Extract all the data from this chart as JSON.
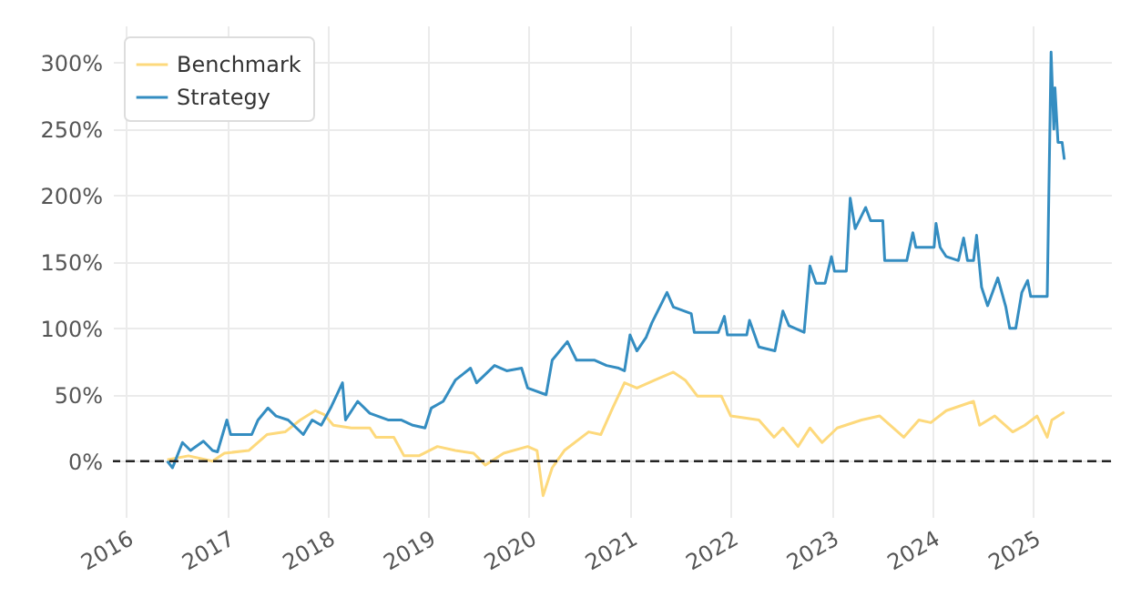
{
  "chart_data": {
    "type": "line",
    "xlim": [
      "2015-11-15",
      "2025-10-10"
    ],
    "xticks": [
      "2016",
      "2017",
      "2018",
      "2019",
      "2020",
      "2021",
      "2022",
      "2023",
      "2024",
      "2025"
    ],
    "ylim": [
      -42,
      328
    ],
    "yticks": [
      {
        "value": 0,
        "label": "0%"
      },
      {
        "value": 50,
        "label": "50%"
      },
      {
        "value": 100,
        "label": "100%"
      },
      {
        "value": 150,
        "label": "150%"
      },
      {
        "value": 200,
        "label": "200%"
      },
      {
        "value": 250,
        "label": "250%"
      },
      {
        "value": 300,
        "label": "300%"
      }
    ],
    "grid": true,
    "legend": "top left",
    "ref_lines": [
      {
        "axis": "y",
        "value": 0,
        "color": "#222222",
        "line_style": "dashed"
      }
    ],
    "series": [
      {
        "name": "Benchmark",
        "color": "#fdd97c",
        "x": [
          "2016-05-30",
          "2016-08-15",
          "2016-11-10",
          "2016-12-23",
          "2017-03-21",
          "2017-05-26",
          "2017-07-31",
          "2017-09-24",
          "2017-11-17",
          "2017-12-20",
          "2018-01-22",
          "2018-03-28",
          "2018-06-03",
          "2018-06-25",
          "2018-08-29",
          "2018-10-05",
          "2018-11-28",
          "2019-02-03",
          "2019-04-09",
          "2019-06-14",
          "2019-07-27",
          "2019-10-01",
          "2019-12-27",
          "2020-01-30",
          "2020-02-21",
          "2020-03-25",
          "2020-05-08",
          "2020-08-04",
          "2020-09-17",
          "2020-10-30",
          "2020-12-12",
          "2021-01-26",
          "2021-04-01",
          "2021-06-07",
          "2021-07-20",
          "2021-09-02",
          "2021-11-28",
          "2022-01-01",
          "2022-04-13",
          "2022-06-07",
          "2022-07-09",
          "2022-09-02",
          "2022-10-15",
          "2022-11-28",
          "2023-01-22",
          "2023-04-20",
          "2023-06-25",
          "2023-09-20",
          "2023-11-14",
          "2023-12-27",
          "2024-02-21",
          "2024-05-30",
          "2024-06-21",
          "2024-08-15",
          "2024-10-19",
          "2024-12-02",
          "2025-01-15",
          "2025-02-21",
          "2025-03-10",
          "2025-04-24"
        ],
        "values": [
          1,
          4,
          0,
          6,
          8,
          20,
          22,
          31,
          38,
          35,
          27,
          25,
          25,
          18,
          18,
          4,
          4,
          11,
          8,
          6,
          -3,
          6,
          11,
          8,
          -26,
          -5,
          8,
          22,
          20,
          40,
          59,
          55,
          61,
          67,
          61,
          49,
          49,
          34,
          31,
          18,
          25,
          11,
          25,
          14,
          25,
          31,
          34,
          18,
          31,
          29,
          38,
          45,
          27,
          34,
          22,
          27,
          34,
          18,
          31,
          37
        ]
      },
      {
        "name": "Strategy",
        "color": "#348dc1",
        "x": [
          "2016-05-30",
          "2016-06-18",
          "2016-07-24",
          "2016-08-22",
          "2016-10-08",
          "2016-11-10",
          "2016-11-28",
          "2017-01-01",
          "2017-01-15",
          "2017-04-01",
          "2017-04-24",
          "2017-05-30",
          "2017-06-28",
          "2017-08-11",
          "2017-10-05",
          "2017-11-06",
          "2017-12-09",
          "2018-01-12",
          "2018-02-24",
          "2018-03-07",
          "2018-04-20",
          "2018-06-03",
          "2018-08-08",
          "2018-09-24",
          "2018-11-06",
          "2018-12-20",
          "2019-01-12",
          "2019-02-24",
          "2019-04-09",
          "2019-06-03",
          "2019-06-25",
          "2019-08-29",
          "2019-10-12",
          "2019-12-05",
          "2019-12-27",
          "2020-03-03",
          "2020-03-25",
          "2020-05-19",
          "2020-06-21",
          "2020-08-26",
          "2020-10-08",
          "2020-11-21",
          "2020-12-12",
          "2021-01-01",
          "2021-01-26",
          "2021-02-28",
          "2021-03-21",
          "2021-05-15",
          "2021-06-07",
          "2021-08-11",
          "2021-08-22",
          "2021-11-17",
          "2021-12-09",
          "2021-12-20",
          "2022-02-28",
          "2022-03-10",
          "2022-04-13",
          "2022-06-10",
          "2022-07-09",
          "2022-07-31",
          "2022-09-24",
          "2022-10-15",
          "2022-11-06",
          "2022-12-09",
          "2023-01-01",
          "2023-01-12",
          "2023-02-24",
          "2023-03-10",
          "2023-03-28",
          "2023-05-05",
          "2023-05-23",
          "2023-07-06",
          "2023-07-13",
          "2023-10-01",
          "2023-10-23",
          "2023-11-03",
          "2024-01-08",
          "2024-01-15",
          "2024-01-30",
          "2024-02-21",
          "2024-04-05",
          "2024-04-24",
          "2024-05-08",
          "2024-05-30",
          "2024-06-10",
          "2024-06-28",
          "2024-07-20",
          "2024-08-26",
          "2024-09-24",
          "2024-10-08",
          "2024-10-30",
          "2024-11-21",
          "2024-12-12",
          "2024-12-23",
          "2025-02-21",
          "2025-03-07",
          "2025-03-17",
          "2025-03-21",
          "2025-04-01",
          "2025-04-16",
          "2025-04-24"
        ],
        "values": [
          0,
          -5,
          14,
          8,
          15,
          8,
          7,
          31,
          20,
          20,
          31,
          40,
          34,
          31,
          20,
          31,
          27,
          40,
          59,
          31,
          45,
          36,
          31,
          31,
          27,
          25,
          40,
          45,
          61,
          70,
          59,
          72,
          68,
          70,
          55,
          50,
          76,
          90,
          76,
          76,
          72,
          70,
          68,
          95,
          83,
          93,
          104,
          127,
          116,
          111,
          97,
          97,
          109,
          95,
          95,
          106,
          86,
          83,
          113,
          102,
          97,
          147,
          134,
          134,
          154,
          143,
          143,
          198,
          175,
          191,
          181,
          181,
          151,
          151,
          172,
          161,
          161,
          179,
          161,
          154,
          151,
          168,
          151,
          151,
          170,
          131,
          117,
          138,
          116,
          100,
          100,
          127,
          136,
          124,
          124,
          308,
          250,
          281,
          240,
          240,
          227
        ]
      }
    ]
  }
}
